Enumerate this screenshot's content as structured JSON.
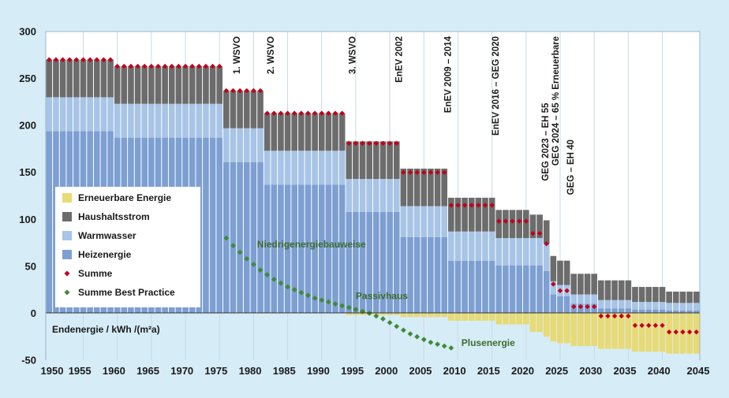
{
  "chart_data": {
    "type": "bar",
    "stacked": true,
    "x_start": 1950,
    "x_end": 2045,
    "xlim": [
      1950,
      2045
    ],
    "ylim": [
      -50,
      300
    ],
    "x_ticks": [
      "1950",
      "1955",
      "1960",
      "1965",
      "1970",
      "1975",
      "1980",
      "1985",
      "1990",
      "1995",
      "2000",
      "2005",
      "2010",
      "2015",
      "2020",
      "2025",
      "2030",
      "2035",
      "2040",
      "2045"
    ],
    "y_ticks": [
      "-50",
      "0",
      "50",
      "100",
      "150",
      "200",
      "250",
      "300"
    ],
    "ylabel": "Endenergie / kWh /(m²a)",
    "grid": "vertical",
    "legend_position": "left",
    "segments": [
      {
        "from": 1950,
        "to": 1959,
        "heizenergie": 194,
        "warmwasser": 36,
        "haushaltsstrom": 40,
        "erneuerbare": 0
      },
      {
        "from": 1960,
        "to": 1975,
        "heizenergie": 187,
        "warmwasser": 36,
        "haushaltsstrom": 40,
        "erneuerbare": 0
      },
      {
        "from": 1976,
        "to": 1981,
        "heizenergie": 161,
        "warmwasser": 36,
        "haushaltsstrom": 40,
        "erneuerbare": 0
      },
      {
        "from": 1982,
        "to": 1993,
        "heizenergie": 137,
        "warmwasser": 36,
        "haushaltsstrom": 40,
        "erneuerbare": 0
      },
      {
        "from": 1994,
        "to": 2001,
        "heizenergie": 108,
        "warmwasser": 35,
        "haushaltsstrom": 40,
        "erneuerbare": -2
      },
      {
        "from": 2002,
        "to": 2008,
        "heizenergie": 81,
        "warmwasser": 33,
        "haushaltsstrom": 40,
        "erneuerbare": -4
      },
      {
        "from": 2009,
        "to": 2015,
        "heizenergie": 56,
        "warmwasser": 31,
        "haushaltsstrom": 36,
        "erneuerbare": -8
      },
      {
        "from": 2016,
        "to": 2020,
        "heizenergie": 51,
        "warmwasser": 29,
        "haushaltsstrom": 30,
        "erneuerbare": -12
      },
      {
        "from": 2021,
        "to": 2022,
        "heizenergie": 51,
        "warmwasser": 29,
        "haushaltsstrom": 25,
        "erneuerbare": -20
      },
      {
        "from": 2023,
        "to": 2023,
        "heizenergie": 45,
        "warmwasser": 29,
        "haushaltsstrom": 25,
        "erneuerbare": -25
      },
      {
        "from": 2024,
        "to": 2024,
        "heizenergie": 20,
        "warmwasser": 14,
        "haushaltsstrom": 27,
        "erneuerbare": -30
      },
      {
        "from": 2025,
        "to": 2026,
        "heizenergie": 18,
        "warmwasser": 12,
        "haushaltsstrom": 26,
        "erneuerbare": -32
      },
      {
        "from": 2027,
        "to": 2030,
        "heizenergie": 10,
        "warmwasser": 10,
        "haushaltsstrom": 22,
        "erneuerbare": -35
      },
      {
        "from": 2031,
        "to": 2035,
        "heizenergie": 5,
        "warmwasser": 9,
        "haushaltsstrom": 21,
        "erneuerbare": -38
      },
      {
        "from": 2036,
        "to": 2040,
        "heizenergie": 4,
        "warmwasser": 8,
        "haushaltsstrom": 16,
        "erneuerbare": -41
      },
      {
        "from": 2041,
        "to": 2045,
        "heizenergie": 3,
        "warmwasser": 8,
        "haushaltsstrom": 12,
        "erneuerbare": -43
      }
    ],
    "series": [
      {
        "key": "erneuerbare",
        "name": "Erneuerbare Energie",
        "color": "#e8da74"
      },
      {
        "key": "haushaltsstrom",
        "name": "Haushaltsstrom",
        "color": "#6c6c6c"
      },
      {
        "key": "warmwasser",
        "name": "Warmwasser",
        "color": "#a8c4e6"
      },
      {
        "key": "heizenergie",
        "name": "Heizenergie",
        "color": "#7d9fd2"
      },
      {
        "key": "summe",
        "name": "Summe",
        "color": "#c0001a"
      },
      {
        "key": "best_practice",
        "name": "Summe Best Practice",
        "color": "#3f8a3a"
      }
    ],
    "best_practice": [
      [
        1976,
        80
      ],
      [
        1977,
        72
      ],
      [
        1978,
        65
      ],
      [
        1979,
        58
      ],
      [
        1980,
        52
      ],
      [
        1981,
        46
      ],
      [
        1982,
        41
      ],
      [
        1983,
        36
      ],
      [
        1984,
        32
      ],
      [
        1985,
        28
      ],
      [
        1986,
        25
      ],
      [
        1987,
        22
      ],
      [
        1988,
        19
      ],
      [
        1989,
        16
      ],
      [
        1990,
        14
      ],
      [
        1991,
        12
      ],
      [
        1992,
        10
      ],
      [
        1993,
        8
      ],
      [
        1994,
        6
      ],
      [
        1995,
        4
      ],
      [
        1996,
        2
      ],
      [
        1997,
        0
      ],
      [
        1998,
        -3
      ],
      [
        1999,
        -6
      ],
      [
        2000,
        -10
      ],
      [
        2001,
        -14
      ],
      [
        2002,
        -18
      ],
      [
        2003,
        -22
      ],
      [
        2004,
        -25
      ],
      [
        2005,
        -28
      ],
      [
        2006,
        -31
      ],
      [
        2007,
        -33
      ],
      [
        2008,
        -35
      ],
      [
        2009,
        -37
      ]
    ],
    "regulations": [
      {
        "label": "1. WSVO",
        "year": 1977.5,
        "y": 300
      },
      {
        "label": "2. WSVO",
        "year": 1982.5,
        "y": 300
      },
      {
        "label": "3. WSVO",
        "year": 1994.5,
        "y": 300
      },
      {
        "label": "EnEV 2002",
        "year": 2001.3,
        "y": 300
      },
      {
        "label": "EnEV 2009 – 2014",
        "year": 2008.5,
        "y": 300
      },
      {
        "label": "EnEV 2016 – GEG 2020",
        "year": 2015.5,
        "y": 300
      },
      {
        "label": "GEG 2023 – EH 55",
        "year": 2022.8,
        "y": 229
      },
      {
        "label": "GEG 2024 – 65 % Erneuerbare",
        "year": 2024.3,
        "y": 300
      },
      {
        "label": "GEG – EH 40",
        "year": 2026.5,
        "y": 190
      }
    ],
    "annotations": [
      {
        "label": "Niedrigenergiebauweise",
        "year": 1980.5,
        "y": 70
      },
      {
        "label": "Passivhaus",
        "year": 1995.0,
        "y": 15
      },
      {
        "label": "Plusenergie",
        "year": 2010.5,
        "y": -35
      }
    ]
  }
}
